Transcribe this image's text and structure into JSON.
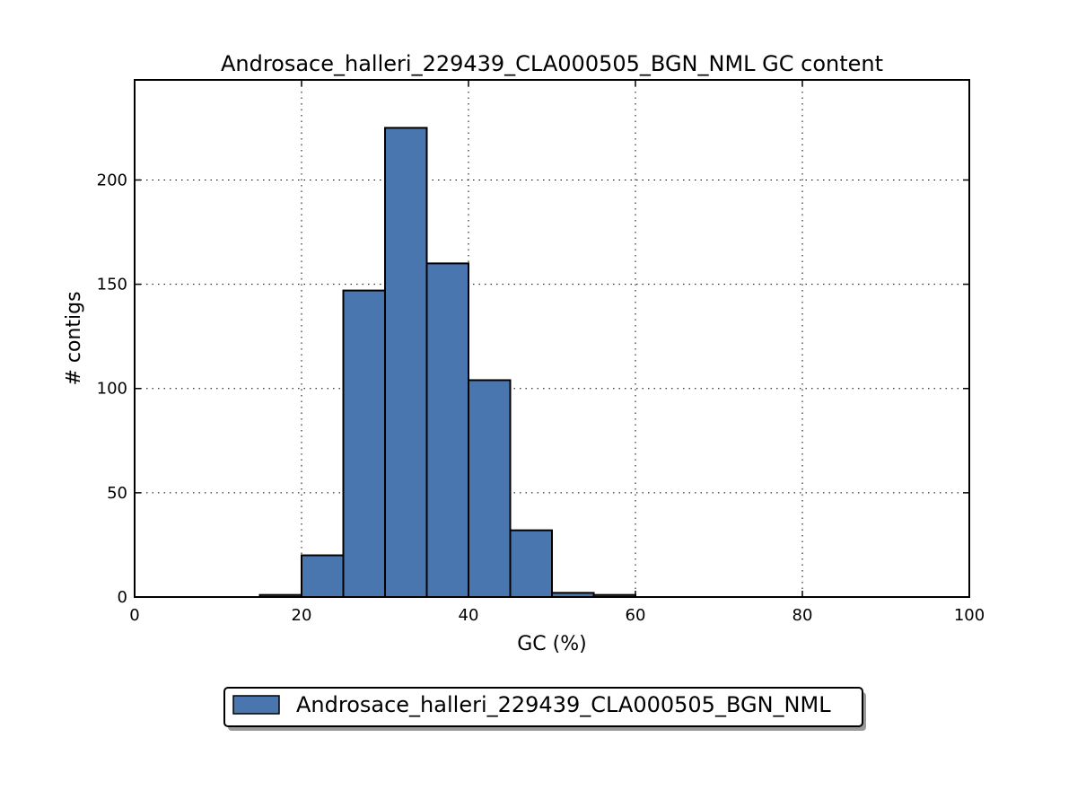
{
  "chart_data": {
    "type": "bar",
    "title": "Androsace_halleri_229439_CLA000505_BGN_NML GC content",
    "xlabel": "GC (%)",
    "ylabel": "# contigs",
    "xlim": [
      0,
      100
    ],
    "ylim": [
      0,
      248
    ],
    "xticks": [
      0,
      20,
      40,
      60,
      80,
      100
    ],
    "yticks": [
      0,
      50,
      100,
      150,
      200
    ],
    "grid": true,
    "legend_position": "bottom-center",
    "series": [
      {
        "name": "Androsace_halleri_229439_CLA000505_BGN_NML",
        "color": "#4a76b0",
        "bins": [
          {
            "x0": 15,
            "x1": 20,
            "value": 1
          },
          {
            "x0": 20,
            "x1": 25,
            "value": 20
          },
          {
            "x0": 25,
            "x1": 30,
            "value": 147
          },
          {
            "x0": 30,
            "x1": 35,
            "value": 225
          },
          {
            "x0": 35,
            "x1": 40,
            "value": 160
          },
          {
            "x0": 40,
            "x1": 45,
            "value": 104
          },
          {
            "x0": 45,
            "x1": 50,
            "value": 32
          },
          {
            "x0": 50,
            "x1": 55,
            "value": 2
          },
          {
            "x0": 55,
            "x1": 60,
            "value": 1
          }
        ]
      }
    ]
  }
}
